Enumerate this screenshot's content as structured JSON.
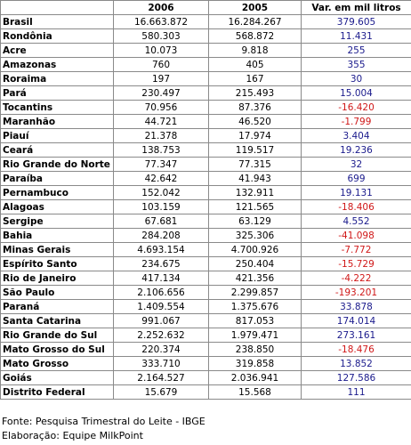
{
  "table": {
    "headers": [
      "",
      "2006",
      "2005",
      "Var. em mil litros"
    ],
    "rows": [
      {
        "name": "Brasil",
        "y2006": "16.663.872",
        "y2005": "16.284.267",
        "var": "379.605",
        "sign": "pos"
      },
      {
        "name": "Rondônia",
        "y2006": "580.303",
        "y2005": "568.872",
        "var": "11.431",
        "sign": "pos"
      },
      {
        "name": "Acre",
        "y2006": "10.073",
        "y2005": "9.818",
        "var": "255",
        "sign": "pos"
      },
      {
        "name": "Amazonas",
        "y2006": "760",
        "y2005": "405",
        "var": "355",
        "sign": "pos"
      },
      {
        "name": "Roraima",
        "y2006": "197",
        "y2005": "167",
        "var": "30",
        "sign": "pos"
      },
      {
        "name": "Pará",
        "y2006": "230.497",
        "y2005": "215.493",
        "var": "15.004",
        "sign": "pos"
      },
      {
        "name": "Tocantins",
        "y2006": "70.956",
        "y2005": "87.376",
        "var": "-16.420",
        "sign": "neg"
      },
      {
        "name": "Maranhão",
        "y2006": "44.721",
        "y2005": "46.520",
        "var": "-1.799",
        "sign": "neg"
      },
      {
        "name": "Piauí",
        "y2006": "21.378",
        "y2005": "17.974",
        "var": "3.404",
        "sign": "pos"
      },
      {
        "name": "Ceará",
        "y2006": "138.753",
        "y2005": "119.517",
        "var": "19.236",
        "sign": "pos"
      },
      {
        "name": "Rio Grande do Norte",
        "y2006": "77.347",
        "y2005": "77.315",
        "var": "32",
        "sign": "pos"
      },
      {
        "name": "Paraíba",
        "y2006": "42.642",
        "y2005": "41.943",
        "var": "699",
        "sign": "pos"
      },
      {
        "name": "Pernambuco",
        "y2006": "152.042",
        "y2005": "132.911",
        "var": "19.131",
        "sign": "pos"
      },
      {
        "name": "Alagoas",
        "y2006": "103.159",
        "y2005": "121.565",
        "var": "-18.406",
        "sign": "neg"
      },
      {
        "name": "Sergipe",
        "y2006": "67.681",
        "y2005": "63.129",
        "var": "4.552",
        "sign": "pos"
      },
      {
        "name": "Bahia",
        "y2006": "284.208",
        "y2005": "325.306",
        "var": "-41.098",
        "sign": "neg"
      },
      {
        "name": "Minas Gerais",
        "y2006": "4.693.154",
        "y2005": "4.700.926",
        "var": "-7.772",
        "sign": "neg"
      },
      {
        "name": "Espírito Santo",
        "y2006": "234.675",
        "y2005": "250.404",
        "var": "-15.729",
        "sign": "neg"
      },
      {
        "name": "Rio de Janeiro",
        "y2006": "417.134",
        "y2005": "421.356",
        "var": "-4.222",
        "sign": "neg"
      },
      {
        "name": "São Paulo",
        "y2006": "2.106.656",
        "y2005": "2.299.857",
        "var": "-193.201",
        "sign": "neg"
      },
      {
        "name": "Paraná",
        "y2006": "1.409.554",
        "y2005": "1.375.676",
        "var": "33.878",
        "sign": "pos"
      },
      {
        "name": "Santa Catarina",
        "y2006": "991.067",
        "y2005": "817.053",
        "var": "174.014",
        "sign": "pos"
      },
      {
        "name": "Rio Grande do Sul",
        "y2006": "2.252.632",
        "y2005": "1.979.471",
        "var": "273.161",
        "sign": "pos"
      },
      {
        "name": "Mato Grosso do Sul",
        "y2006": "220.374",
        "y2005": "238.850",
        "var": "-18.476",
        "sign": "neg"
      },
      {
        "name": "Mato Grosso",
        "y2006": "333.710",
        "y2005": "319.858",
        "var": "13.852",
        "sign": "pos"
      },
      {
        "name": "Goiás",
        "y2006": "2.164.527",
        "y2005": "2.036.941",
        "var": "127.586",
        "sign": "pos"
      },
      {
        "name": "Distrito Federal",
        "y2006": "15.679",
        "y2005": "15.568",
        "var": "111",
        "sign": "pos"
      }
    ]
  },
  "notes": {
    "source": "Fonte: Pesquisa Trimestral do Leite - IBGE",
    "credit": "Elaboração: Equipe MilkPoint"
  },
  "colors": {
    "positive": "#1a1a8c",
    "negative": "#d01818"
  }
}
